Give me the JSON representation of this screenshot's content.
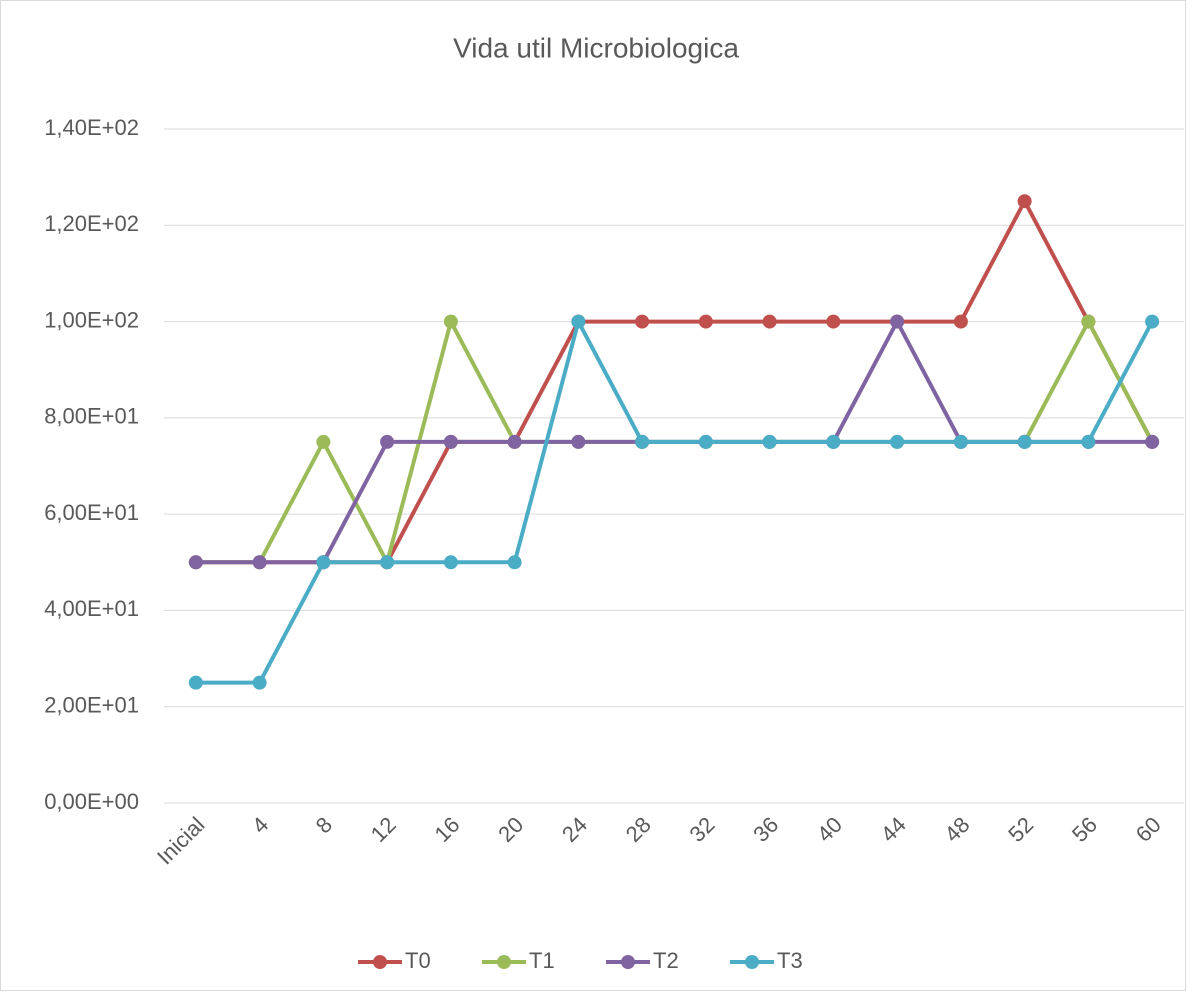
{
  "chart_data": {
    "type": "line",
    "title": "Vida util Microbiologica",
    "categories": [
      "Inicial",
      "4",
      "8",
      "12",
      "16",
      "20",
      "24",
      "28",
      "32",
      "36",
      "40",
      "44",
      "48",
      "52",
      "56",
      "60"
    ],
    "series": [
      {
        "name": "T0",
        "color": "#c0504d",
        "values": [
          50,
          50,
          50,
          50,
          75,
          75,
          100,
          100,
          100,
          100,
          100,
          100,
          100,
          125,
          100,
          75
        ]
      },
      {
        "name": "T1",
        "color": "#9bbb59",
        "values": [
          50,
          50,
          75,
          50,
          100,
          75,
          75,
          75,
          75,
          75,
          75,
          75,
          75,
          75,
          100,
          75
        ]
      },
      {
        "name": "T2",
        "color": "#8064a2",
        "values": [
          50,
          50,
          50,
          75,
          75,
          75,
          75,
          75,
          75,
          75,
          75,
          100,
          75,
          75,
          75,
          75
        ]
      },
      {
        "name": "T3",
        "color": "#4bacc6",
        "values": [
          25,
          25,
          50,
          50,
          50,
          50,
          100,
          75,
          75,
          75,
          75,
          75,
          75,
          75,
          75,
          100
        ]
      }
    ],
    "ylim": [
      0,
      140
    ],
    "yticks": [
      {
        "value": 0,
        "label": "0,00E+00"
      },
      {
        "value": 20,
        "label": "2,00E+01"
      },
      {
        "value": 40,
        "label": "4,00E+01"
      },
      {
        "value": 60,
        "label": "6,00E+01"
      },
      {
        "value": 80,
        "label": "8,00E+01"
      },
      {
        "value": 100,
        "label": "1,00E+02"
      },
      {
        "value": 120,
        "label": "1,20E+02"
      },
      {
        "value": 140,
        "label": "1,40E+02"
      }
    ],
    "grid": true,
    "legend": "bottom"
  }
}
